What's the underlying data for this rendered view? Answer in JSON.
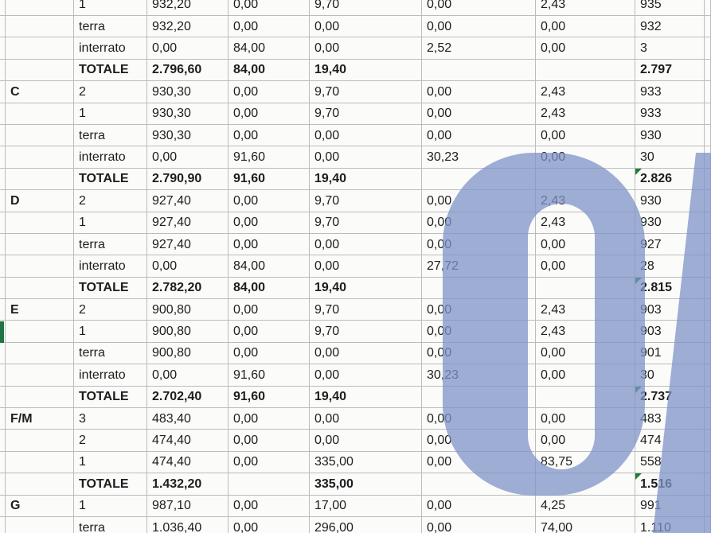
{
  "colors": {
    "grid_line": "#bcbcbc",
    "text": "#1d1d1d",
    "watermark": "#7e93c8",
    "selection_green": "#217346",
    "error_triangle_green": "#1e7e34"
  },
  "selection": {
    "row_index": 15
  },
  "table": {
    "floor_labels_seen": [
      "3",
      "2",
      "1",
      "terra",
      "interrato",
      "TOTALE"
    ],
    "rows": [
      {
        "building": "",
        "floor": "1",
        "values": [
          "932,20",
          "0,00",
          "9,70",
          "0,00",
          "2,43",
          "935"
        ],
        "total_row": false,
        "error_marker": false
      },
      {
        "building": "",
        "floor": "terra",
        "values": [
          "932,20",
          "0,00",
          "0,00",
          "0,00",
          "0,00",
          "932"
        ],
        "total_row": false,
        "error_marker": false
      },
      {
        "building": "",
        "floor": "interrato",
        "values": [
          "0,00",
          "84,00",
          "0,00",
          "2,52",
          "0,00",
          "3"
        ],
        "total_row": false,
        "error_marker": false
      },
      {
        "building": "",
        "floor": "TOTALE",
        "values": [
          "2.796,60",
          "84,00",
          "19,40",
          "",
          "",
          "2.797"
        ],
        "total_row": true,
        "error_marker": false
      },
      {
        "building": "C",
        "floor": "2",
        "values": [
          "930,30",
          "0,00",
          "9,70",
          "0,00",
          "2,43",
          "933"
        ],
        "total_row": false,
        "error_marker": false
      },
      {
        "building": "",
        "floor": "1",
        "values": [
          "930,30",
          "0,00",
          "9,70",
          "0,00",
          "2,43",
          "933"
        ],
        "total_row": false,
        "error_marker": false
      },
      {
        "building": "",
        "floor": "terra",
        "values": [
          "930,30",
          "0,00",
          "0,00",
          "0,00",
          "0,00",
          "930"
        ],
        "total_row": false,
        "error_marker": false
      },
      {
        "building": "",
        "floor": "interrato",
        "values": [
          "0,00",
          "91,60",
          "0,00",
          "30,23",
          "0,00",
          "30"
        ],
        "total_row": false,
        "error_marker": false
      },
      {
        "building": "",
        "floor": "TOTALE",
        "values": [
          "2.790,90",
          "91,60",
          "19,40",
          "",
          "",
          "2.826"
        ],
        "total_row": true,
        "error_marker": true
      },
      {
        "building": "D",
        "floor": "2",
        "values": [
          "927,40",
          "0,00",
          "9,70",
          "0,00",
          "2,43",
          "930"
        ],
        "total_row": false,
        "error_marker": false
      },
      {
        "building": "",
        "floor": "1",
        "values": [
          "927,40",
          "0,00",
          "9,70",
          "0,00",
          "2,43",
          "930"
        ],
        "total_row": false,
        "error_marker": false
      },
      {
        "building": "",
        "floor": "terra",
        "values": [
          "927,40",
          "0,00",
          "0,00",
          "0,00",
          "0,00",
          "927"
        ],
        "total_row": false,
        "error_marker": false
      },
      {
        "building": "",
        "floor": "interrato",
        "values": [
          "0,00",
          "84,00",
          "0,00",
          "27,72",
          "0,00",
          "28"
        ],
        "total_row": false,
        "error_marker": false
      },
      {
        "building": "",
        "floor": "TOTALE",
        "values": [
          "2.782,20",
          "84,00",
          "19,40",
          "",
          "",
          "2.815"
        ],
        "total_row": true,
        "error_marker": true
      },
      {
        "building": "E",
        "floor": "2",
        "values": [
          "900,80",
          "0,00",
          "9,70",
          "0,00",
          "2,43",
          "903"
        ],
        "total_row": false,
        "error_marker": false
      },
      {
        "building": "",
        "floor": "1",
        "values": [
          "900,80",
          "0,00",
          "9,70",
          "0,00",
          "2,43",
          "903"
        ],
        "total_row": false,
        "error_marker": false
      },
      {
        "building": "",
        "floor": "terra",
        "values": [
          "900,80",
          "0,00",
          "0,00",
          "0,00",
          "0,00",
          "901"
        ],
        "total_row": false,
        "error_marker": false
      },
      {
        "building": "",
        "floor": "interrato",
        "values": [
          "0,00",
          "91,60",
          "0,00",
          "30,23",
          "0,00",
          "30"
        ],
        "total_row": false,
        "error_marker": false
      },
      {
        "building": "",
        "floor": "TOTALE",
        "values": [
          "2.702,40",
          "91,60",
          "19,40",
          "",
          "",
          "2.737"
        ],
        "total_row": true,
        "error_marker": true
      },
      {
        "building": "F/M",
        "floor": "3",
        "values": [
          "483,40",
          "0,00",
          "0,00",
          "0,00",
          "0,00",
          "483"
        ],
        "total_row": false,
        "error_marker": false
      },
      {
        "building": "",
        "floor": "2",
        "values": [
          "474,40",
          "0,00",
          "0,00",
          "0,00",
          "0,00",
          "474"
        ],
        "total_row": false,
        "error_marker": false
      },
      {
        "building": "",
        "floor": "1",
        "values": [
          "474,40",
          "0,00",
          "335,00",
          "0,00",
          "83,75",
          "558"
        ],
        "total_row": false,
        "error_marker": false
      },
      {
        "building": "",
        "floor": "TOTALE",
        "values": [
          "1.432,20",
          "",
          "335,00",
          "",
          "",
          "1.516"
        ],
        "total_row": true,
        "error_marker": true
      },
      {
        "building": "G",
        "floor": "1",
        "values": [
          "987,10",
          "0,00",
          "17,00",
          "0,00",
          "4,25",
          "991"
        ],
        "total_row": false,
        "error_marker": false
      },
      {
        "building": "",
        "floor": "terra",
        "values": [
          "1.036,40",
          "0,00",
          "296,00",
          "0,00",
          "74,00",
          "1.110"
        ],
        "total_row": false,
        "error_marker": false
      }
    ]
  }
}
